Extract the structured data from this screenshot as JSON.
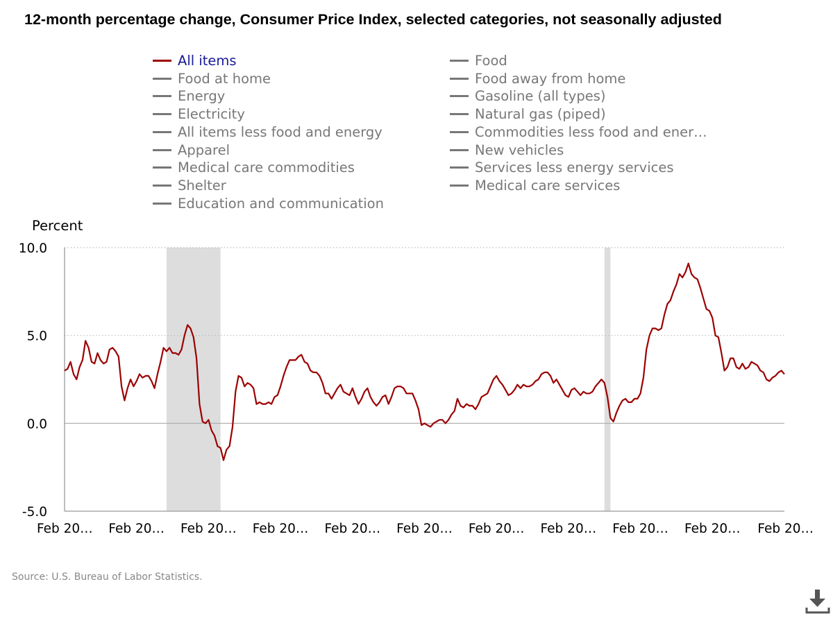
{
  "title": "12-month percentage change, Consumer Price Index, selected categories, not seasonally adjusted",
  "legend": [
    {
      "label": "All items",
      "active": true
    },
    {
      "label": "Food",
      "active": false
    },
    {
      "label": "Food at home",
      "active": false
    },
    {
      "label": "Food away from home",
      "active": false
    },
    {
      "label": "Energy",
      "active": false
    },
    {
      "label": "Gasoline (all types)",
      "active": false
    },
    {
      "label": "Electricity",
      "active": false
    },
    {
      "label": "Natural gas (piped)",
      "active": false
    },
    {
      "label": "All items less food and energy",
      "active": false
    },
    {
      "label": "Commodities less food and ener…",
      "active": false
    },
    {
      "label": "Apparel",
      "active": false
    },
    {
      "label": "New vehicles",
      "active": false
    },
    {
      "label": "Medical care commodities",
      "active": false
    },
    {
      "label": "Services less energy services",
      "active": false
    },
    {
      "label": "Shelter",
      "active": false
    },
    {
      "label": "Medical care services",
      "active": false
    },
    {
      "label": "Education and communication",
      "active": false
    }
  ],
  "source": "Source: U.S. Bureau of Labor Statistics.",
  "download_icon": "download-icon",
  "colors": {
    "all_items": "#9b0000",
    "inactive": "#777777",
    "recession": "#dddddd",
    "active_legend_text": "#1a1a99"
  },
  "chart_data": {
    "type": "line",
    "ylabel": "Percent",
    "ylim": [
      -5,
      10
    ],
    "yticks": [
      "10.0",
      "5.0",
      "0.0",
      "-5.0"
    ],
    "ytick_values": [
      10,
      5,
      0,
      -5
    ],
    "xlim": [
      "Feb 2005",
      "Feb 2025"
    ],
    "xticks": [
      "Feb 20…",
      "Feb 20…",
      "Feb 20…",
      "Feb 20…",
      "Feb 20…",
      "Feb 20…",
      "Feb 20…",
      "Feb 20…",
      "Feb 20…",
      "Feb 20…",
      "Feb 20…"
    ],
    "xtick_dates": [
      "Feb 2005",
      "Feb 2007",
      "Feb 2009",
      "Feb 2011",
      "Feb 2013",
      "Feb 2015",
      "Feb 2017",
      "Feb 2019",
      "Feb 2021",
      "Feb 2023",
      "Feb 2025"
    ],
    "grid": "horizontal dotted",
    "shaded_periods": [
      [
        "Dec 2007",
        "Jun 2009"
      ],
      [
        "Feb 2020",
        "Apr 2020"
      ]
    ],
    "series": [
      {
        "name": "All items",
        "frequency": "monthly",
        "values_by_year_jan_to_dec": {
          "2005": [
            null,
            3.0,
            3.1,
            3.5,
            2.8,
            2.5,
            3.2,
            3.6,
            4.7,
            4.3,
            3.5,
            3.4
          ],
          "2006": [
            4.0,
            3.6,
            3.4,
            3.5,
            4.2,
            4.3,
            4.1,
            3.8,
            2.1,
            1.3,
            2.0,
            2.5
          ],
          "2007": [
            2.1,
            2.4,
            2.8,
            2.6,
            2.7,
            2.7,
            2.4,
            2.0,
            2.8,
            3.5,
            4.3,
            4.1
          ],
          "2008": [
            4.3,
            4.0,
            4.0,
            3.9,
            4.2,
            5.0,
            5.6,
            5.4,
            4.9,
            3.7,
            1.1,
            0.1
          ],
          "2009": [
            0.0,
            0.2,
            -0.4,
            -0.7,
            -1.3,
            -1.4,
            -2.1,
            -1.5,
            -1.3,
            -0.2,
            1.8,
            2.7
          ],
          "2010": [
            2.6,
            2.1,
            2.3,
            2.2,
            2.0,
            1.1,
            1.2,
            1.1,
            1.1,
            1.2,
            1.1,
            1.5
          ],
          "2011": [
            1.6,
            2.1,
            2.7,
            3.2,
            3.6,
            3.6,
            3.6,
            3.8,
            3.9,
            3.5,
            3.4,
            3.0
          ],
          "2012": [
            2.9,
            2.9,
            2.7,
            2.3,
            1.7,
            1.7,
            1.4,
            1.7,
            2.0,
            2.2,
            1.8,
            1.7
          ],
          "2013": [
            1.6,
            2.0,
            1.5,
            1.1,
            1.4,
            1.8,
            2.0,
            1.5,
            1.2,
            1.0,
            1.2,
            1.5
          ],
          "2014": [
            1.6,
            1.1,
            1.5,
            2.0,
            2.1,
            2.1,
            2.0,
            1.7,
            1.7,
            1.7,
            1.3,
            0.8
          ],
          "2015": [
            -0.1,
            0.0,
            -0.1,
            -0.2,
            0.0,
            0.1,
            0.2,
            0.2,
            0.0,
            0.2,
            0.5,
            0.7
          ],
          "2016": [
            1.4,
            1.0,
            0.9,
            1.1,
            1.0,
            1.0,
            0.8,
            1.1,
            1.5,
            1.6,
            1.7,
            2.1
          ],
          "2017": [
            2.5,
            2.7,
            2.4,
            2.2,
            1.9,
            1.6,
            1.7,
            1.9,
            2.2,
            2.0,
            2.2,
            2.1
          ],
          "2018": [
            2.1,
            2.2,
            2.4,
            2.5,
            2.8,
            2.9,
            2.9,
            2.7,
            2.3,
            2.5,
            2.2,
            1.9
          ],
          "2019": [
            1.6,
            1.5,
            1.9,
            2.0,
            1.8,
            1.6,
            1.8,
            1.7,
            1.7,
            1.8,
            2.1,
            2.3
          ],
          "2020": [
            2.5,
            2.3,
            1.5,
            0.3,
            0.1,
            0.6,
            1.0,
            1.3,
            1.4,
            1.2,
            1.2,
            1.4
          ],
          "2021": [
            1.4,
            1.7,
            2.6,
            4.2,
            5.0,
            5.4,
            5.4,
            5.3,
            5.4,
            6.2,
            6.8,
            7.0
          ],
          "2022": [
            7.5,
            7.9,
            8.5,
            8.3,
            8.6,
            9.1,
            8.5,
            8.3,
            8.2,
            7.7,
            7.1,
            6.5
          ],
          "2023": [
            6.4,
            6.0,
            5.0,
            4.9,
            4.0,
            3.0,
            3.2,
            3.7,
            3.7,
            3.2,
            3.1,
            3.4
          ],
          "2024": [
            3.1,
            3.2,
            3.5,
            3.4,
            3.3,
            3.0,
            2.9,
            2.5,
            2.4,
            2.6,
            2.7,
            2.9
          ],
          "2025": [
            3.0,
            2.8,
            null,
            null,
            null,
            null,
            null,
            null,
            null,
            null,
            null,
            null
          ]
        }
      }
    ]
  }
}
